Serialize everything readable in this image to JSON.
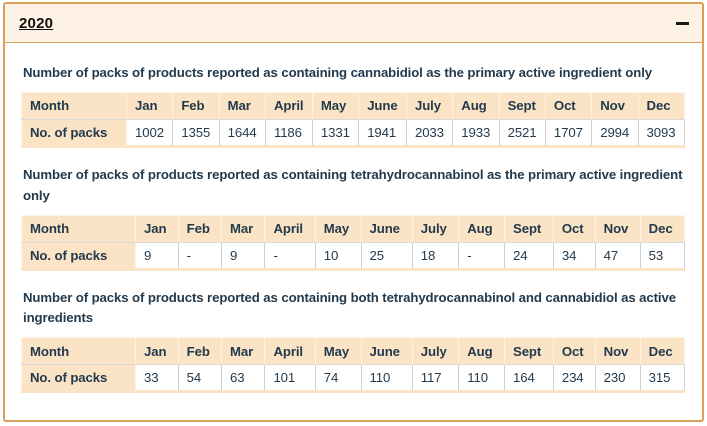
{
  "accordion": {
    "year_label": "2020",
    "collapse_icon": "minus",
    "state": "expanded"
  },
  "table_header": [
    "Month",
    "Jan",
    "Feb",
    "Mar",
    "April",
    "May",
    "June",
    "July",
    "Aug",
    "Sept",
    "Oct",
    "Nov",
    "Dec"
  ],
  "row_label": "No. of packs",
  "sections": [
    {
      "title": "Number of packs of products reported as containing cannabidiol as the primary active ingredient only",
      "values": [
        "1002",
        "1355",
        "1644",
        "1186",
        "1331",
        "1941",
        "2033",
        "1933",
        "2521",
        "1707",
        "2994",
        "3093"
      ]
    },
    {
      "title": "Number of packs of products reported as containing tetrahydrocannabinol as the primary active ingredient only",
      "values": [
        "9",
        "-",
        "9",
        "-",
        "10",
        "25",
        "18",
        "-",
        "24",
        "34",
        "47",
        "53"
      ]
    },
    {
      "title": "Number of packs of products reported as containing both tetrahydrocannabinol and cannabidiol as active ingredients",
      "values": [
        "33",
        "54",
        "63",
        "101",
        "74",
        "110",
        "117",
        "110",
        "164",
        "234",
        "230",
        "315"
      ]
    }
  ],
  "colors": {
    "panel_border": "#d9a05a",
    "panel_header_bg": "#fdf2e3",
    "table_header_bg": "#fbe4c6",
    "table_cell_border": "#cfcfcf",
    "text": "#233a4d",
    "link_text": "#111111"
  }
}
